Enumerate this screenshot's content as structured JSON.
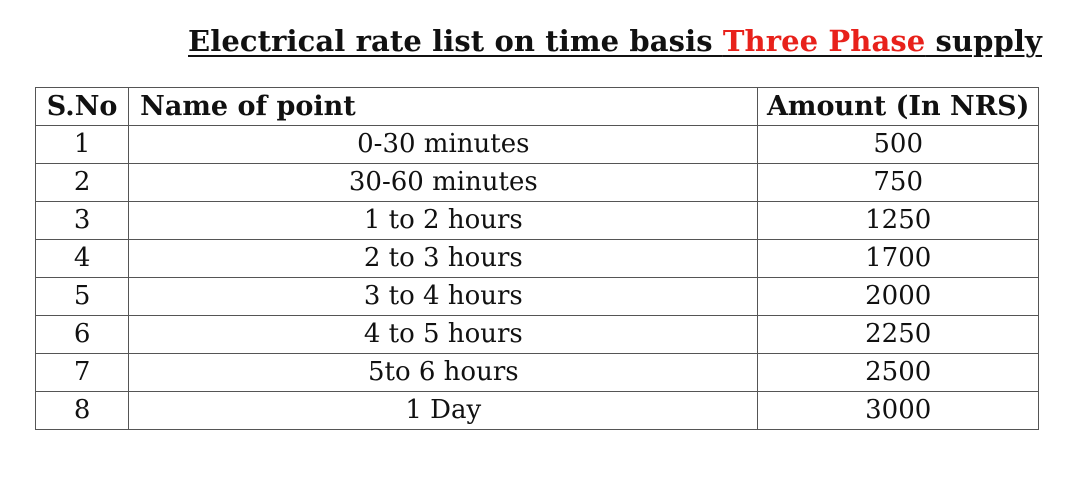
{
  "title": {
    "part1": "Electrical rate list on time basis ",
    "highlight": "Three Phase",
    "part2": " supply"
  },
  "colors": {
    "highlight": "#e8211b",
    "text": "#111111",
    "border": "#555555"
  },
  "table": {
    "headers": {
      "sno": "S.No",
      "name": "Name of point",
      "amount": "Amount (In NRS)"
    },
    "rows": [
      {
        "sno": "1",
        "name": "0-30 minutes",
        "amount": "500"
      },
      {
        "sno": "2",
        "name": "30-60 minutes",
        "amount": "750"
      },
      {
        "sno": "3",
        "name": "1 to 2 hours",
        "amount": "1250"
      },
      {
        "sno": "4",
        "name": "2 to 3 hours",
        "amount": "1700"
      },
      {
        "sno": "5",
        "name": "3 to 4 hours",
        "amount": "2000"
      },
      {
        "sno": "6",
        "name": "4 to 5 hours",
        "amount": "2250"
      },
      {
        "sno": "7",
        "name": "5to 6 hours",
        "amount": "2500"
      },
      {
        "sno": "8",
        "name": "1 Day",
        "amount": "3000"
      }
    ]
  }
}
